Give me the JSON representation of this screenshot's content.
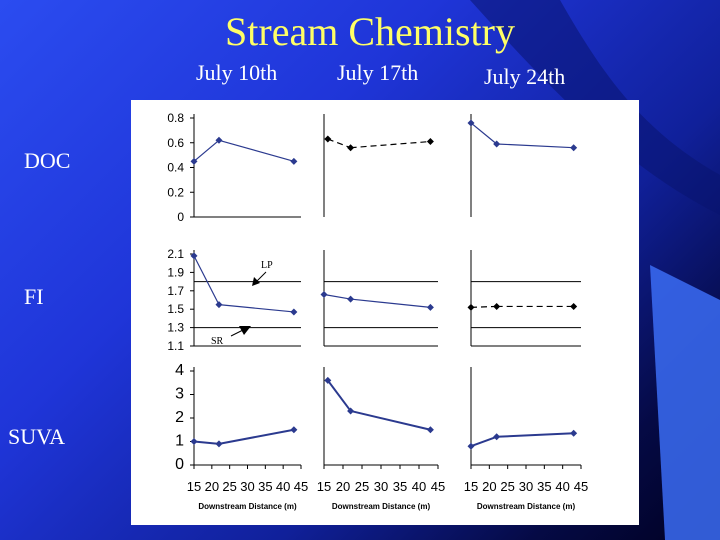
{
  "slide": {
    "title": "Stream Chemistry",
    "columns": [
      "July 10th",
      "July 17th",
      "July 24th"
    ],
    "rows": [
      "DOC",
      "FI",
      "SUVA"
    ]
  },
  "colors": {
    "title": "#ffff66",
    "series": "#2b3a8f"
  },
  "annotations": {
    "lp": "LP",
    "sr": "SR"
  },
  "chart_data": [
    {
      "type": "line",
      "panel": "DOC July 10th",
      "x": [
        15,
        22,
        43
      ],
      "y": [
        0.45,
        0.62,
        0.45
      ],
      "ylim": [
        0,
        0.8
      ],
      "yticks": [
        "0",
        "0.2",
        "0.4",
        "0.6",
        "0.8"
      ]
    },
    {
      "type": "line",
      "panel": "DOC July 17th",
      "x": [
        16,
        22,
        43
      ],
      "y": [
        0.63,
        0.56,
        0.61
      ]
    },
    {
      "type": "line",
      "panel": "DOC July 24th",
      "x": [
        15,
        22,
        43
      ],
      "y": [
        0.76,
        0.59,
        0.56
      ]
    },
    {
      "type": "line",
      "panel": "FI July 10th",
      "x": [
        15,
        22,
        43
      ],
      "y": [
        2.08,
        1.55,
        1.47
      ],
      "ylim": [
        1.1,
        2.1
      ],
      "yticks": [
        "1.1",
        "1.3",
        "1.5",
        "1.7",
        "1.9",
        "2.1"
      ],
      "reference_lines": [
        {
          "label": "LP",
          "y": 1.8
        },
        {
          "label": "SR",
          "y": 1.3
        }
      ]
    },
    {
      "type": "line",
      "panel": "FI July 17th",
      "x": [
        15,
        22,
        43
      ],
      "y": [
        1.66,
        1.61,
        1.52
      ]
    },
    {
      "type": "line",
      "panel": "FI July 24th",
      "x": [
        15,
        22,
        43
      ],
      "y": [
        1.52,
        1.53,
        1.53
      ]
    },
    {
      "type": "line",
      "panel": "SUVA July 10th",
      "x": [
        15,
        22,
        43
      ],
      "y": [
        1.0,
        0.9,
        1.5
      ],
      "ylim": [
        0,
        4
      ],
      "yticks": [
        "0",
        "1",
        "2",
        "3",
        "4"
      ],
      "xlim": [
        15,
        45
      ],
      "xticks": [
        "15",
        "20",
        "25",
        "30",
        "35",
        "40",
        "45"
      ],
      "xlabel": "Downstream Distance (m)"
    },
    {
      "type": "line",
      "panel": "SUVA July 17th",
      "x": [
        16,
        22,
        43
      ],
      "y": [
        3.6,
        2.3,
        1.5
      ],
      "xlim": [
        15,
        45
      ],
      "xticks": [
        "15",
        "20",
        "25",
        "30",
        "35",
        "40",
        "45"
      ],
      "xlabel": "Downstream Distance (m)"
    },
    {
      "type": "line",
      "panel": "SUVA July 24th",
      "x": [
        15,
        22,
        43
      ],
      "y": [
        0.8,
        1.2,
        1.35
      ],
      "xlim": [
        15,
        45
      ],
      "xticks": [
        "15",
        "20",
        "25",
        "30",
        "35",
        "40",
        "45"
      ],
      "xlabel": "Downstream Distance (m)"
    }
  ]
}
